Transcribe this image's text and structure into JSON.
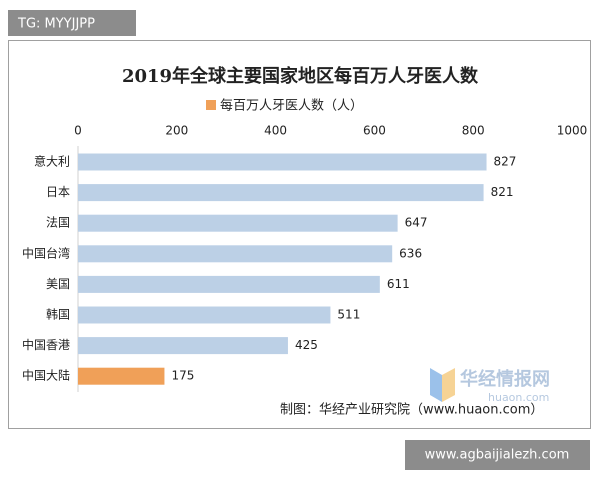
{
  "tag": "TG: MYYJJPP",
  "source": "制图：华经产业研究院（www.huaon.com）",
  "watermark": {
    "name": "华经情报网",
    "url": "huaon.com"
  },
  "site": "www.agbaijialezh.com",
  "chart_data": {
    "type": "bar",
    "orientation": "horizontal",
    "title": "2019年全球主要国家地区每百万人牙医人数",
    "categories": [
      "意大利",
      "日本",
      "法国",
      "中国台湾",
      "美国",
      "韩国",
      "中国香港",
      "中国大陆"
    ],
    "series": [
      {
        "name": "每百万人牙医人数（人）",
        "color": "#f0a058",
        "values": [
          827,
          821,
          647,
          636,
          611,
          511,
          425,
          175
        ],
        "bar_colors": [
          "#bcd0e6",
          "#bcd0e6",
          "#bcd0e6",
          "#bcd0e6",
          "#bcd0e6",
          "#bcd0e6",
          "#bcd0e6",
          "#f0a058"
        ]
      }
    ],
    "xlim": [
      0,
      1000
    ],
    "xticks": [
      0,
      200,
      400,
      600,
      800,
      1000
    ],
    "grid": false
  }
}
